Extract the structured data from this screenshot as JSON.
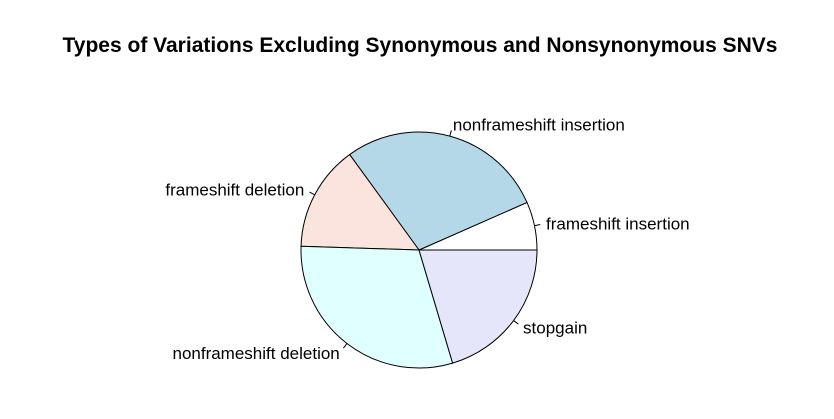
{
  "chart_data": {
    "type": "pie",
    "title": "Types of Variations Excluding Synonymous and Nonsynonymous SNVs",
    "start_angle_deg": 0,
    "direction": "counterclockwise",
    "categories": [
      "frameshift insertion",
      "nonframeshift insertion",
      "frameshift deletion",
      "nonframeshift deletion",
      "stopgain"
    ],
    "values": [
      6.6,
      28.4,
      14.5,
      30.1,
      20.4
    ],
    "colors": [
      "#ffffff",
      "#b4d8e7",
      "#fbe3de",
      "#e0ffff",
      "#e6e6fa"
    ],
    "legend": "none"
  }
}
